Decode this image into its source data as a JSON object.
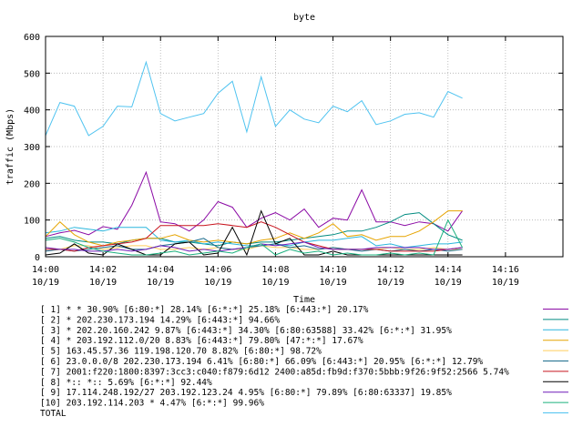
{
  "chart_data": {
    "type": "line",
    "title": "byte",
    "ylabel": "traffic (Mbps)",
    "xlabel": "Time",
    "ylim": [
      0,
      600
    ],
    "xlim": [
      0,
      18
    ],
    "grid": true,
    "legend_position": "bottom",
    "y_ticks": [
      {
        "value": 0,
        "label": "0"
      },
      {
        "value": 100,
        "label": "100"
      },
      {
        "value": 200,
        "label": "200"
      },
      {
        "value": 300,
        "label": "300"
      },
      {
        "value": 400,
        "label": "400"
      },
      {
        "value": 500,
        "label": "500"
      },
      {
        "value": 600,
        "label": "600"
      }
    ],
    "x_ticks": [
      {
        "value": 0,
        "time": "14:00",
        "date": "10/19"
      },
      {
        "value": 2,
        "time": "14:02",
        "date": "10/19"
      },
      {
        "value": 4,
        "time": "14:04",
        "date": "10/19"
      },
      {
        "value": 6,
        "time": "14:06",
        "date": "10/19"
      },
      {
        "value": 8,
        "time": "14:08",
        "date": "10/19"
      },
      {
        "value": 10,
        "time": "14:10",
        "date": "10/19"
      },
      {
        "value": 12,
        "time": "14:12",
        "date": "10/19"
      },
      {
        "value": 14,
        "time": "14:14",
        "date": "10/19"
      },
      {
        "value": 16,
        "time": "14:16",
        "date": "10/19"
      }
    ],
    "x": [
      0,
      0.5,
      1,
      1.5,
      2,
      2.5,
      3,
      3.5,
      4,
      4.5,
      5,
      5.5,
      6,
      6.5,
      7,
      7.5,
      8,
      8.5,
      9,
      9.5,
      10,
      10.5,
      11,
      11.5,
      12,
      12.5,
      13,
      13.5,
      14,
      14.5
    ],
    "series": [
      {
        "name": "[ 1] * * 30.90%  [6:80:*] 28.14%  [6:*:*] 25.18% [6:443:*] 20.17%",
        "color": "#8b0aa5",
        "values": [
          55,
          65,
          72,
          60,
          82,
          75,
          140,
          230,
          95,
          90,
          70,
          100,
          150,
          135,
          80,
          105,
          120,
          100,
          130,
          80,
          105,
          100,
          182,
          95,
          95,
          85,
          95,
          90,
          70,
          125
        ]
      },
      {
        "name": "[ 2] * 202.230.173.194 14.29%  [6:443:*] 94.66%",
        "color": "#008b80",
        "values": [
          50,
          55,
          45,
          40,
          40,
          35,
          45,
          50,
          50,
          40,
          40,
          35,
          30,
          40,
          35,
          40,
          40,
          45,
          50,
          55,
          60,
          70,
          70,
          80,
          95,
          115,
          120,
          90,
          60,
          45
        ]
      },
      {
        "name": "[ 3] * 202.20.160.242 9.87%  [6:443:*] 34.30%  [6:80:63588] 33.42%  [6:*:*] 31.95%",
        "color": "#2ab6dd",
        "values": [
          65,
          70,
          80,
          75,
          70,
          80,
          80,
          80,
          45,
          40,
          45,
          35,
          40,
          35,
          30,
          30,
          35,
          30,
          40,
          45,
          45,
          50,
          55,
          30,
          35,
          25,
          30,
          35,
          35,
          40
        ]
      },
      {
        "name": "[ 4] * 203.192.112.0/20 8.83%  [6:443:*] 79.80%  [47:*:*] 17.67%",
        "color": "#e6a400",
        "values": [
          55,
          95,
          60,
          40,
          30,
          40,
          45,
          50,
          50,
          60,
          45,
          40,
          45,
          40,
          35,
          45,
          50,
          65,
          50,
          65,
          90,
          55,
          60,
          45,
          55,
          55,
          70,
          95,
          125,
          125
        ]
      },
      {
        "name": "[ 5] 163.45.57.36 119.198.120.70 8.82%  [6:80:*] 98.72%",
        "color": "#ffcd5c",
        "values": [
          25,
          20,
          30,
          30,
          20,
          25,
          30,
          30,
          20,
          20,
          25,
          20,
          25,
          20,
          20,
          30,
          25,
          25,
          20,
          20,
          25,
          20,
          20,
          20,
          25,
          20,
          20,
          25,
          20,
          20
        ]
      },
      {
        "name": "[ 6] 23.0.0.0/8 202.230.173.194 6.41%  [6:80:*] 66.09% [6:443:*] 20.95% [6:*:*] 12.79%",
        "color": "#1a6b8c",
        "values": [
          15,
          20,
          15,
          20,
          25,
          30,
          20,
          20,
          30,
          35,
          40,
          50,
          25,
          20,
          25,
          30,
          35,
          25,
          30,
          20,
          25,
          20,
          15,
          20,
          15,
          20,
          15,
          20,
          15,
          20
        ]
      },
      {
        "name": "[ 7] 2001:f220:1800:8397:3cc3:c040:f879:6d12 2400:a85d:fb9d:f370:5bbb:9f26:9f52:2566 5.74%",
        "color": "#c8141e",
        "values": [
          20,
          20,
          15,
          25,
          30,
          35,
          40,
          50,
          85,
          85,
          85,
          85,
          90,
          85,
          80,
          95,
          80,
          60,
          40,
          30,
          20,
          20,
          20,
          20,
          15,
          15,
          15,
          15,
          20,
          25
        ]
      },
      {
        "name": "[ 8] *:: *:: 5.69%  [6:*:*] 92.44%",
        "color": "#000000",
        "values": [
          5,
          10,
          35,
          10,
          5,
          35,
          20,
          5,
          5,
          35,
          40,
          5,
          10,
          80,
          5,
          125,
          35,
          50,
          5,
          5,
          15,
          5,
          5,
          5,
          5,
          5,
          5,
          5,
          5,
          5
        ]
      },
      {
        "name": "[ 9] 17.114.248.192/27 203.192.123.24 4.95%  [6:80:*] 79.89%  [6:80:63337] 19.85%",
        "color": "#6e1ab8",
        "values": [
          25,
          20,
          20,
          15,
          15,
          20,
          15,
          20,
          30,
          25,
          15,
          20,
          15,
          20,
          25,
          35,
          30,
          35,
          40,
          25,
          20,
          20,
          20,
          25,
          25,
          25,
          25,
          20,
          20,
          25
        ]
      },
      {
        "name": "[10] 203.192.114.203 * 4.47%  [6:*:*] 99.96%",
        "color": "#1bb07e",
        "values": [
          45,
          50,
          40,
          25,
          15,
          10,
          5,
          5,
          10,
          15,
          5,
          10,
          15,
          10,
          25,
          35,
          5,
          20,
          10,
          15,
          5,
          10,
          5,
          5,
          10,
          5,
          10,
          5,
          100,
          25
        ]
      },
      {
        "name": "TOTAL",
        "color": "#4fc3f0",
        "values": [
          330,
          420,
          410,
          330,
          355,
          410,
          408,
          530,
          390,
          370,
          380,
          390,
          445,
          478,
          340,
          490,
          355,
          400,
          375,
          365,
          410,
          395,
          425,
          360,
          370,
          388,
          392,
          380,
          450,
          432
        ]
      }
    ]
  }
}
